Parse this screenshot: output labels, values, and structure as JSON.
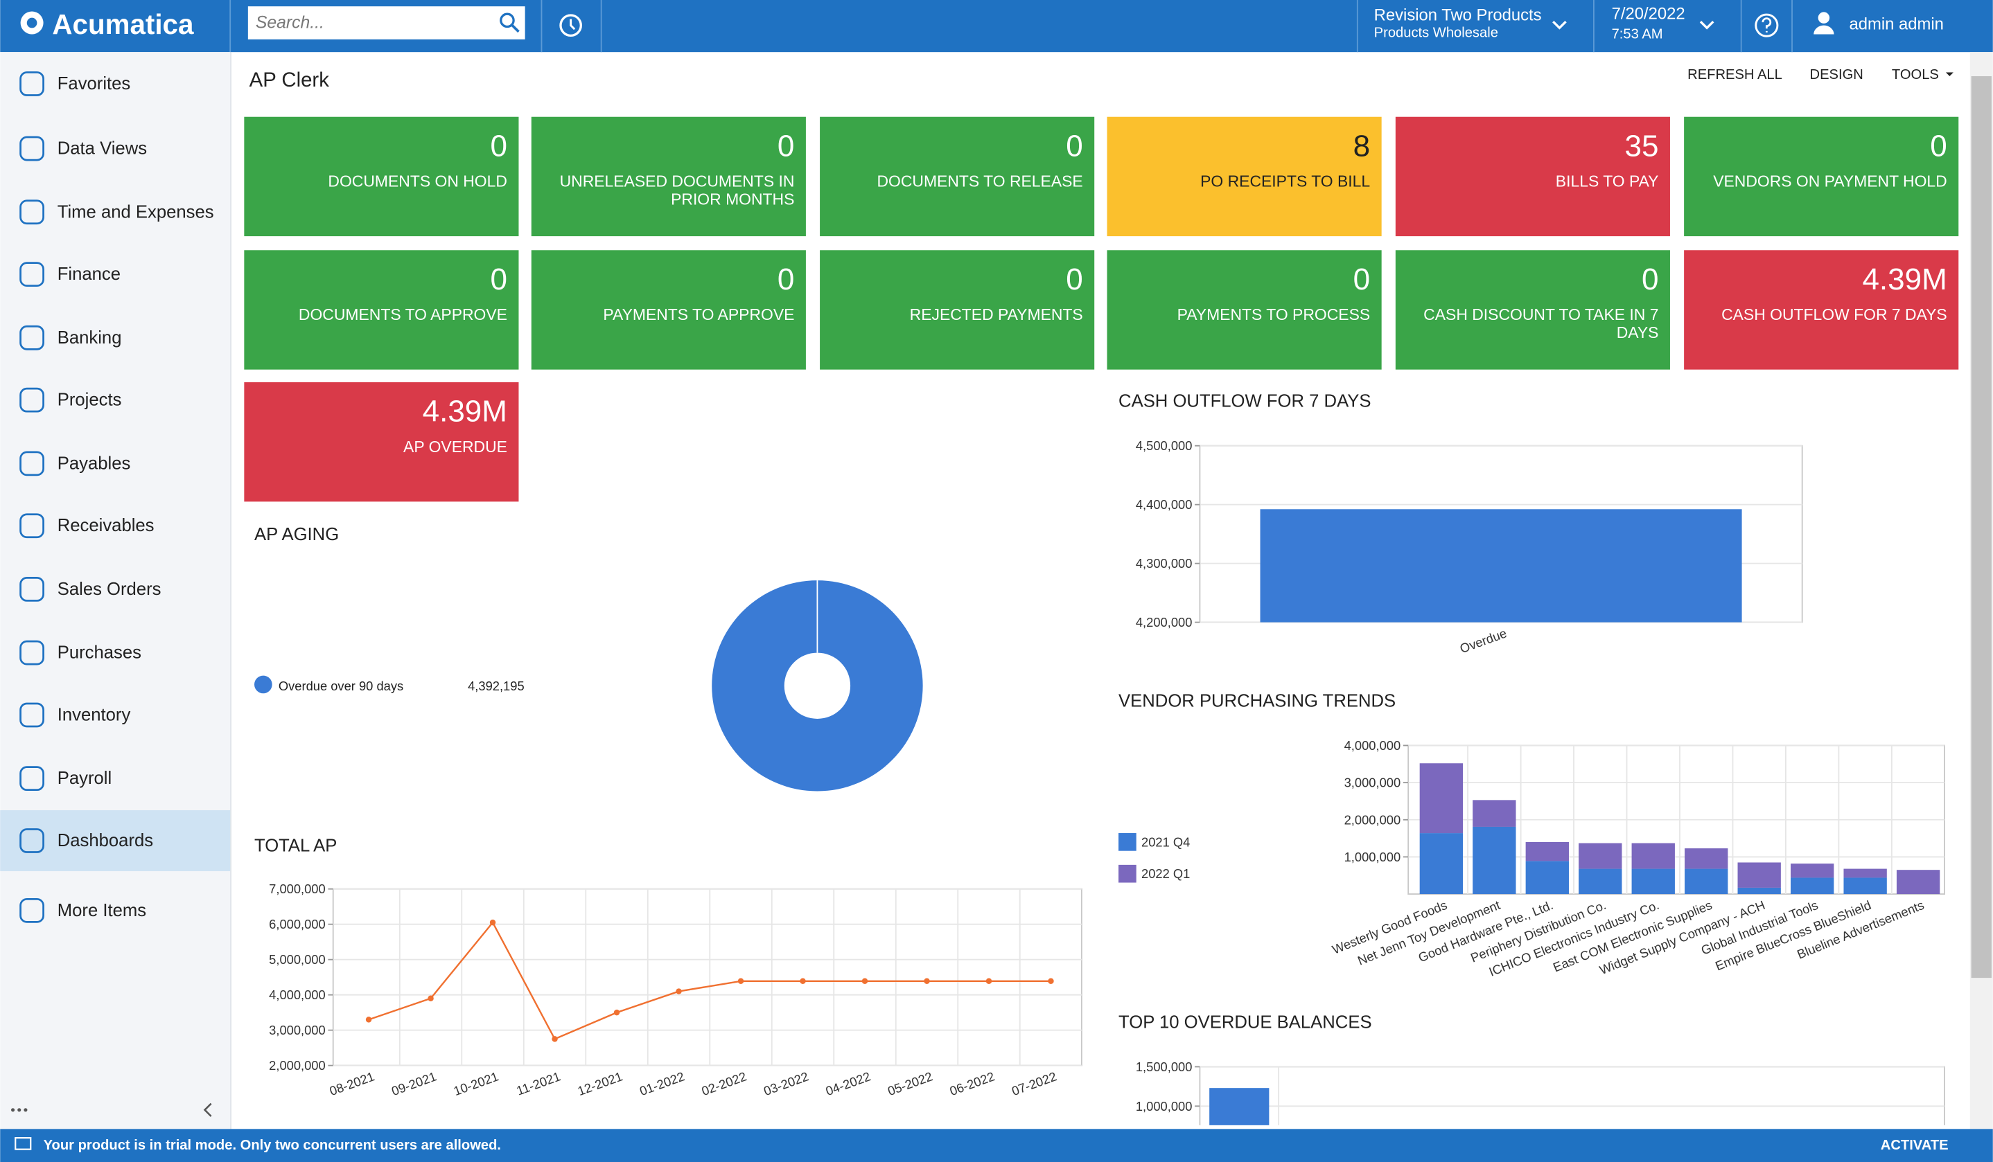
{
  "header": {
    "logo": "Acumatica",
    "search_placeholder": "Search...",
    "company": "Revision Two Products",
    "branch": "Products Wholesale",
    "date": "7/20/2022",
    "time": "7:53 AM",
    "user": "admin admin"
  },
  "sidebar": {
    "items": [
      {
        "label": "Favorites"
      },
      {
        "label": "Data Views"
      },
      {
        "label": "Time and Expenses"
      },
      {
        "label": "Finance"
      },
      {
        "label": "Banking"
      },
      {
        "label": "Projects"
      },
      {
        "label": "Payables"
      },
      {
        "label": "Receivables"
      },
      {
        "label": "Sales Orders"
      },
      {
        "label": "Purchases"
      },
      {
        "label": "Inventory"
      },
      {
        "label": "Payroll"
      },
      {
        "label": "Dashboards",
        "selected": true
      },
      {
        "label": "More Items"
      }
    ]
  },
  "page": {
    "title": "AP Clerk",
    "toolbar": [
      "REFRESH ALL",
      "DESIGN",
      "TOOLS"
    ]
  },
  "tiles": [
    {
      "value": "0",
      "label": "DOCUMENTS ON HOLD",
      "color": "#3aa548"
    },
    {
      "value": "0",
      "label": "UNRELEASED DOCUMENTS IN PRIOR MONTHS",
      "color": "#3aa548"
    },
    {
      "value": "0",
      "label": "DOCUMENTS TO RELEASE",
      "color": "#3aa548"
    },
    {
      "value": "8",
      "label": "PO RECEIPTS TO BILL",
      "color": "#fbc02d",
      "text_color": "#222222"
    },
    {
      "value": "35",
      "label": "BILLS TO PAY",
      "color": "#d93a49"
    },
    {
      "value": "0",
      "label": "VENDORS ON PAYMENT HOLD",
      "color": "#3aa548"
    },
    {
      "value": "0",
      "label": "DOCUMENTS TO APPROVE",
      "color": "#3aa548"
    },
    {
      "value": "0",
      "label": "PAYMENTS TO APPROVE",
      "color": "#3aa548"
    },
    {
      "value": "0",
      "label": "REJECTED PAYMENTS",
      "color": "#3aa548"
    },
    {
      "value": "0",
      "label": "PAYMENTS TO PROCESS",
      "color": "#3aa548"
    },
    {
      "value": "0",
      "label": "CASH DISCOUNT TO TAKE IN 7 DAYS",
      "color": "#3aa548"
    },
    {
      "value": "4.39M",
      "label": "CASH OUTFLOW FOR 7 DAYS",
      "color": "#d93a49"
    },
    {
      "value": "4.39M",
      "label": "AP OVERDUE",
      "color": "#d93a49"
    }
  ],
  "chart_data": [
    {
      "type": "bar",
      "title": "CASH OUTFLOW FOR 7 DAYS",
      "categories": [
        "Overdue"
      ],
      "values": [
        4392195
      ],
      "color": "#3a7bd5",
      "ylim": [
        4200000,
        4500000
      ],
      "yticks": [
        {
          "value": 4200000,
          "label": "4,200,000"
        },
        {
          "value": 4300000,
          "label": "4,300,000"
        },
        {
          "value": 4400000,
          "label": "4,400,000"
        },
        {
          "value": 4500000,
          "label": "4,500,000"
        }
      ],
      "grid": true
    },
    {
      "type": "pie",
      "title": "AP AGING",
      "categories": [
        "Overdue over 90 days"
      ],
      "values": [
        4392195
      ],
      "value_labels": [
        "4,392,195"
      ],
      "colors": [
        "#3a7bd5"
      ],
      "donut": true
    },
    {
      "type": "line",
      "title": "TOTAL AP",
      "categories": [
        "08-2021",
        "09-2021",
        "10-2021",
        "11-2021",
        "12-2021",
        "01-2022",
        "02-2022",
        "03-2022",
        "04-2022",
        "05-2022",
        "06-2022",
        "07-2022"
      ],
      "values": [
        3300000,
        3900000,
        6050000,
        2750000,
        3500000,
        4100000,
        4390000,
        4390000,
        4390000,
        4390000,
        4390000,
        4390000
      ],
      "color": "#f07030",
      "ylim": [
        2000000,
        7000000
      ],
      "yticks": [
        {
          "value": 2000000,
          "label": "2,000,000"
        },
        {
          "value": 3000000,
          "label": "3,000,000"
        },
        {
          "value": 4000000,
          "label": "4,000,000"
        },
        {
          "value": 5000000,
          "label": "5,000,000"
        },
        {
          "value": 6000000,
          "label": "6,000,000"
        },
        {
          "value": 7000000,
          "label": "7,000,000"
        }
      ],
      "grid": true
    },
    {
      "type": "stacked_bar",
      "title": "VENDOR PURCHASING TRENDS",
      "categories": [
        "Westerly Good Foods",
        "Net Jenn Toy Development",
        "Good Hardware Pte., Ltd.",
        "Periphery Distribution Co.",
        "ICHICO Electronics Industry Co.",
        "East COM Electronic Supplies",
        "Widget Supply Company - ACH",
        "Global Industrial Tools",
        "Empire BlueCross BlueShield",
        "Blueline Advertisements"
      ],
      "series": [
        {
          "name": "2021 Q4",
          "color": "#3a7bd5",
          "values": [
            1640000,
            1810000,
            890000,
            680000,
            680000,
            680000,
            170000,
            440000,
            440000,
            0
          ]
        },
        {
          "name": "2022 Q1",
          "color": "#7b68be",
          "values": [
            1880000,
            720000,
            510000,
            690000,
            690000,
            550000,
            680000,
            380000,
            240000,
            650000
          ]
        }
      ],
      "ylim": [
        0,
        4000000
      ],
      "yticks": [
        {
          "value": 1000000,
          "label": "1,000,000"
        },
        {
          "value": 2000000,
          "label": "2,000,000"
        },
        {
          "value": 3000000,
          "label": "3,000,000"
        },
        {
          "value": 4000000,
          "label": "4,000,000"
        }
      ],
      "grid": true,
      "legend": "left"
    },
    {
      "type": "bar",
      "title": "TOP 10 OVERDUE BALANCES",
      "categories": [
        null
      ],
      "values": [
        1230000
      ],
      "color": "#3a7bd5",
      "ylim": [
        0,
        1500000
      ],
      "yticks": [
        {
          "value": 1000000,
          "label": "1,000,000"
        },
        {
          "value": 1500000,
          "label": "1,500,000"
        }
      ],
      "grid": true
    }
  ],
  "footer": {
    "message": "Your product is in trial mode. Only two concurrent users are allowed.",
    "action": "ACTIVATE"
  }
}
